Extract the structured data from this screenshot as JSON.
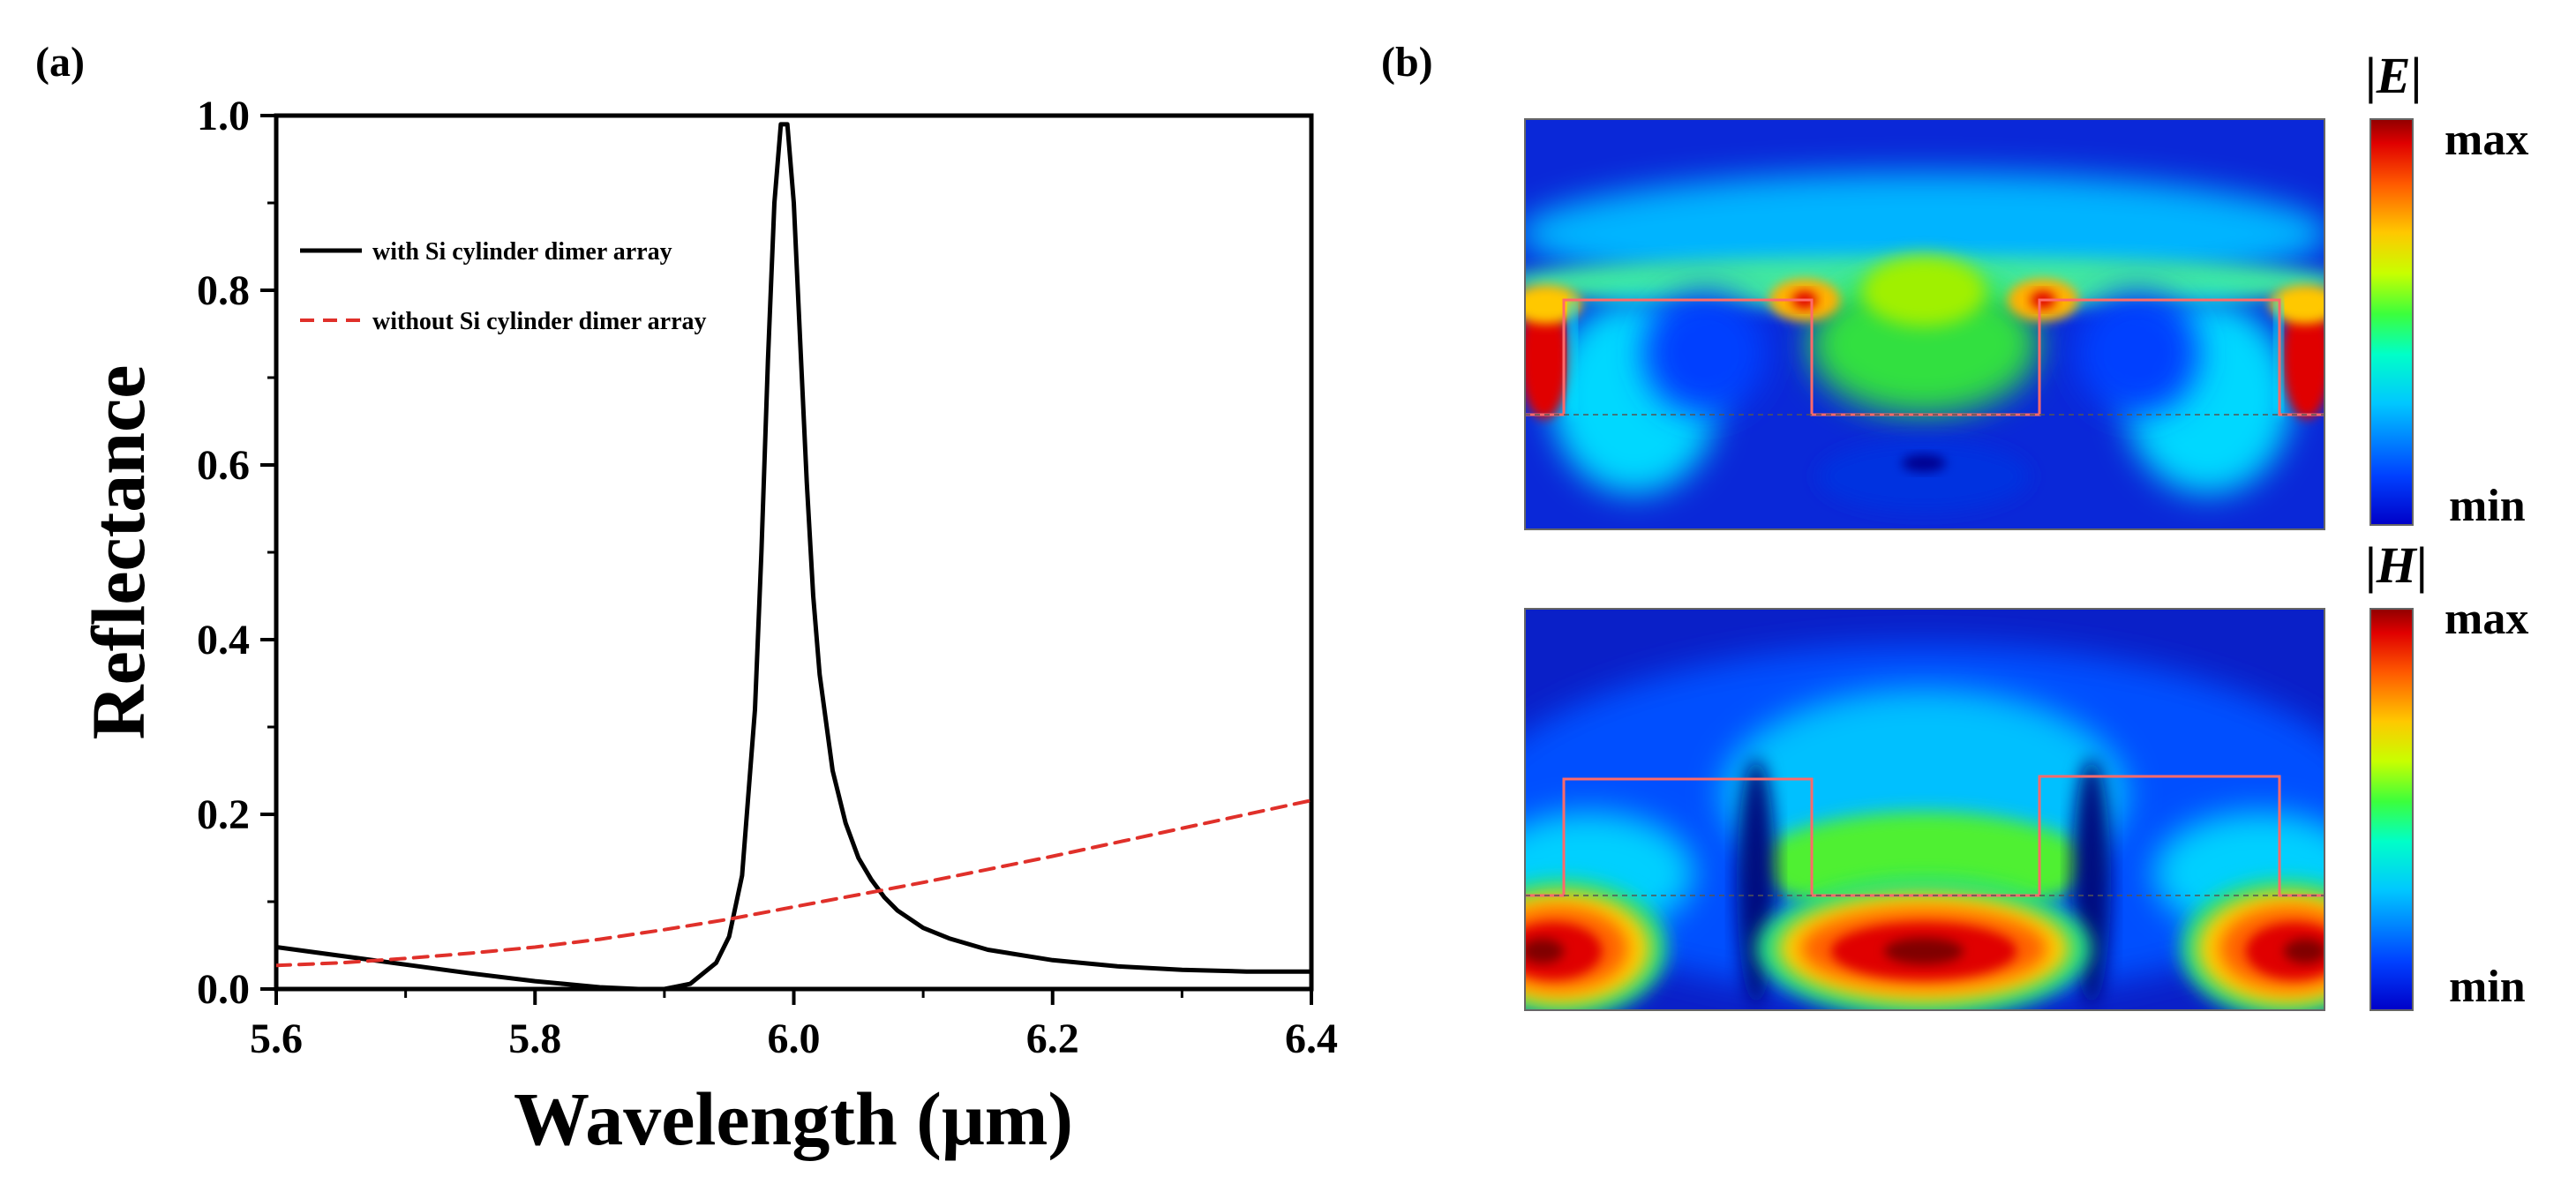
{
  "panel_a": {
    "label": "(a)"
  },
  "panel_b": {
    "label": "(b)",
    "maps": [
      {
        "name": "e-field",
        "quantity": "|E|",
        "quantity_symbol": "E",
        "colorbar_max": "max",
        "colorbar_min": "min"
      },
      {
        "name": "h-field",
        "quantity": "|H|",
        "quantity_symbol": "H",
        "colorbar_max": "max",
        "colorbar_min": "min"
      }
    ],
    "colormap": [
      "#00008f",
      "#0040ff",
      "#00c0ff",
      "#00ffd0",
      "#40ff40",
      "#d0ff00",
      "#ffd000",
      "#ff6000",
      "#e00000",
      "#800000"
    ]
  },
  "chart_data": {
    "type": "line",
    "title": "",
    "xlabel": "Wavelength (μm)",
    "ylabel": "Reflectance",
    "xlim": [
      5.6,
      6.4
    ],
    "ylim": [
      0.0,
      1.0
    ],
    "xticks": [
      5.6,
      5.8,
      6.0,
      6.2,
      6.4
    ],
    "xtick_labels": [
      "5.6",
      "5.8",
      "6.0",
      "6.2",
      "6.4"
    ],
    "yticks": [
      0.0,
      0.2,
      0.4,
      0.6,
      0.8,
      1.0
    ],
    "ytick_labels": [
      "0.0",
      "0.2",
      "0.4",
      "0.6",
      "0.8",
      "1.0"
    ],
    "grid": false,
    "legend_position": "top-left",
    "series": [
      {
        "name": "with Si cylinder dimer array",
        "color": "#000000",
        "style": "solid",
        "x": [
          5.6,
          5.65,
          5.7,
          5.75,
          5.8,
          5.85,
          5.88,
          5.9,
          5.92,
          5.94,
          5.95,
          5.96,
          5.97,
          5.975,
          5.98,
          5.985,
          5.99,
          5.995,
          6.0,
          6.005,
          6.01,
          6.015,
          6.02,
          6.03,
          6.04,
          6.05,
          6.06,
          6.07,
          6.08,
          6.1,
          6.12,
          6.15,
          6.2,
          6.25,
          6.3,
          6.35,
          6.4
        ],
        "y": [
          0.048,
          0.038,
          0.028,
          0.018,
          0.009,
          0.002,
          0.0,
          0.0,
          0.006,
          0.03,
          0.06,
          0.13,
          0.32,
          0.5,
          0.72,
          0.9,
          0.99,
          0.99,
          0.9,
          0.74,
          0.58,
          0.45,
          0.36,
          0.25,
          0.19,
          0.15,
          0.125,
          0.105,
          0.09,
          0.07,
          0.058,
          0.045,
          0.033,
          0.026,
          0.022,
          0.02,
          0.02
        ]
      },
      {
        "name": "without Si cylinder dimer array",
        "color": "#e0302a",
        "style": "dashed",
        "x": [
          5.6,
          5.65,
          5.7,
          5.75,
          5.8,
          5.85,
          5.9,
          5.95,
          6.0,
          6.05,
          6.1,
          6.15,
          6.2,
          6.25,
          6.3,
          6.35,
          6.4
        ],
        "y": [
          0.027,
          0.03,
          0.035,
          0.041,
          0.048,
          0.057,
          0.068,
          0.08,
          0.094,
          0.108,
          0.122,
          0.137,
          0.152,
          0.168,
          0.184,
          0.2,
          0.216
        ]
      }
    ]
  }
}
